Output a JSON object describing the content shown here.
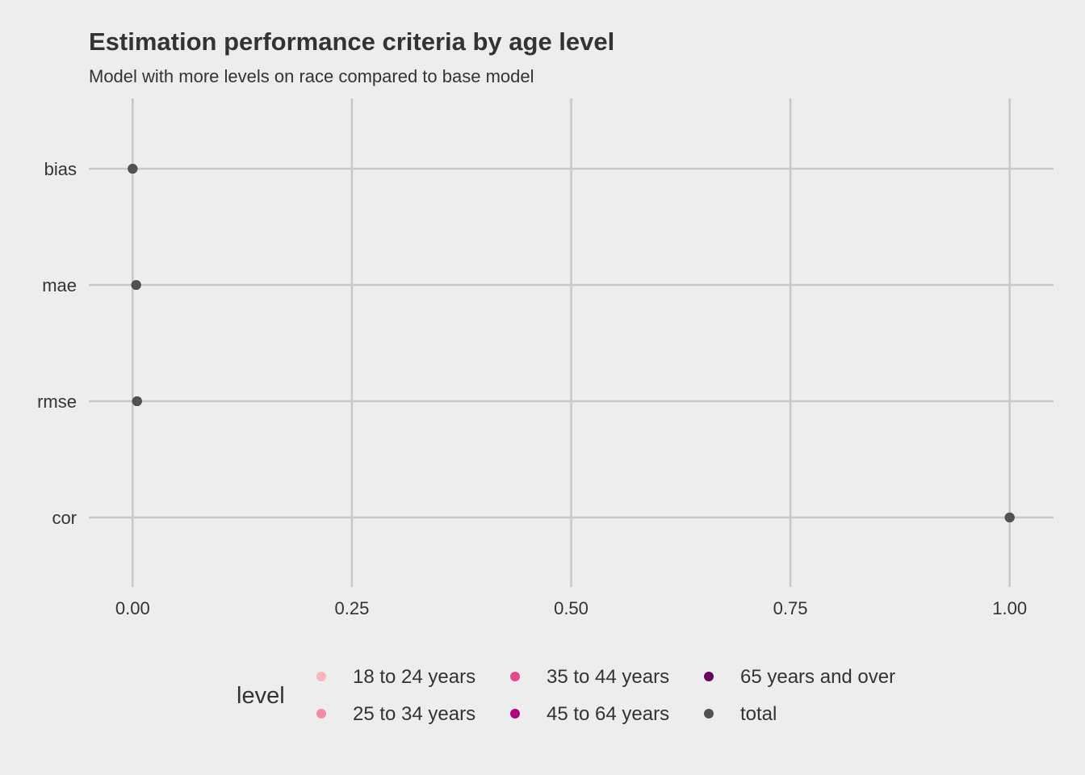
{
  "chart_data": {
    "type": "scatter",
    "title": "Estimation performance criteria by age level",
    "subtitle": "Model with more levels on race compared to base model",
    "xlabel": "",
    "ylabel": "",
    "xlim": [
      -0.05,
      1.05
    ],
    "x_ticks": [
      0.0,
      0.25,
      0.5,
      0.75,
      1.0
    ],
    "x_tick_labels": [
      "0.00",
      "0.25",
      "0.50",
      "0.75",
      "1.00"
    ],
    "categories": [
      "bias",
      "mae",
      "rmse",
      "cor"
    ],
    "grid": true,
    "legend": {
      "title": "level",
      "position": "bottom",
      "entries": [
        {
          "name": "18 to 24 years",
          "color": "#fbb4b9"
        },
        {
          "name": "25 to 34 years",
          "color": "#f48aa5"
        },
        {
          "name": "35 to 44 years",
          "color": "#e5488a"
        },
        {
          "name": "45 to 64 years",
          "color": "#ae017e"
        },
        {
          "name": "65 years and over",
          "color": "#67005f"
        },
        {
          "name": "total",
          "color": "#4f5254"
        }
      ]
    },
    "series": [
      {
        "name": "18 to 24 years",
        "color": "#fbb4b9",
        "points": [
          {
            "y": "bias",
            "x": 0.0
          },
          {
            "y": "mae",
            "x": 0.004
          },
          {
            "y": "rmse",
            "x": 0.005
          },
          {
            "y": "cor",
            "x": 1.0
          }
        ]
      },
      {
        "name": "25 to 34 years",
        "color": "#f48aa5",
        "points": [
          {
            "y": "bias",
            "x": 0.0
          },
          {
            "y": "mae",
            "x": 0.004
          },
          {
            "y": "rmse",
            "x": 0.005
          },
          {
            "y": "cor",
            "x": 1.0
          }
        ]
      },
      {
        "name": "35 to 44 years",
        "color": "#e5488a",
        "points": [
          {
            "y": "bias",
            "x": 0.0
          },
          {
            "y": "mae",
            "x": 0.004
          },
          {
            "y": "rmse",
            "x": 0.005
          },
          {
            "y": "cor",
            "x": 1.0
          }
        ]
      },
      {
        "name": "45 to 64 years",
        "color": "#ae017e",
        "points": [
          {
            "y": "bias",
            "x": 0.0
          },
          {
            "y": "mae",
            "x": 0.004
          },
          {
            "y": "rmse",
            "x": 0.005
          },
          {
            "y": "cor",
            "x": 1.0
          }
        ]
      },
      {
        "name": "65 years and over",
        "color": "#67005f",
        "points": [
          {
            "y": "bias",
            "x": 0.0
          },
          {
            "y": "mae",
            "x": 0.004
          },
          {
            "y": "rmse",
            "x": 0.005
          },
          {
            "y": "cor",
            "x": 1.0
          }
        ]
      },
      {
        "name": "total",
        "color": "#4f5254",
        "points": [
          {
            "y": "bias",
            "x": 0.0
          },
          {
            "y": "mae",
            "x": 0.004
          },
          {
            "y": "rmse",
            "x": 0.005
          },
          {
            "y": "cor",
            "x": 1.0
          }
        ]
      }
    ]
  }
}
